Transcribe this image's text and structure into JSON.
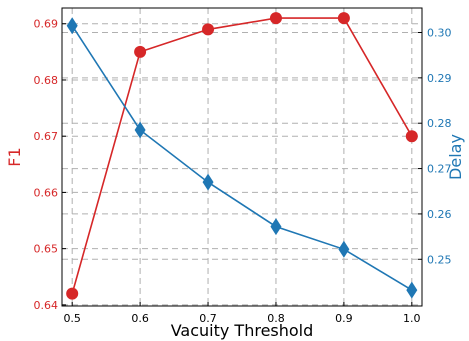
{
  "chart_data": {
    "type": "line",
    "xlabel": "Vacuity Threshold",
    "x_ticks": [
      "0.5",
      "0.6",
      "0.7",
      "0.8",
      "0.9",
      "1.0"
    ],
    "x": [
      0.5,
      0.6,
      0.7,
      0.8,
      0.9,
      1.0
    ],
    "xlim": [
      0.485,
      1.015
    ],
    "grid": true,
    "series": [
      {
        "name": "F1",
        "axis": "left",
        "color": "#d62728",
        "marker": "circle",
        "values": [
          0.642,
          0.685,
          0.689,
          0.691,
          0.691,
          0.67
        ]
      },
      {
        "name": "Delay",
        "axis": "right",
        "color": "#1f77b4",
        "marker": "diamond",
        "values": [
          0.3015,
          0.2785,
          0.267,
          0.2572,
          0.2522,
          0.2432
        ]
      }
    ],
    "left_axis": {
      "label": "F1",
      "color": "#d62728",
      "ticks": [
        "0.64",
        "0.65",
        "0.66",
        "0.67",
        "0.68",
        "0.69"
      ],
      "tick_values": [
        0.64,
        0.65,
        0.66,
        0.67,
        0.68,
        0.69
      ],
      "ylim": [
        0.6398,
        0.6928
      ]
    },
    "right_axis": {
      "label": "Delay",
      "color": "#1f77b4",
      "ticks": [
        "0.25",
        "0.26",
        "0.27",
        "0.28",
        "0.29",
        "0.30"
      ],
      "tick_values": [
        0.25,
        0.26,
        0.27,
        0.28,
        0.29,
        0.3
      ],
      "ylim": [
        0.2397,
        0.3054
      ]
    }
  }
}
